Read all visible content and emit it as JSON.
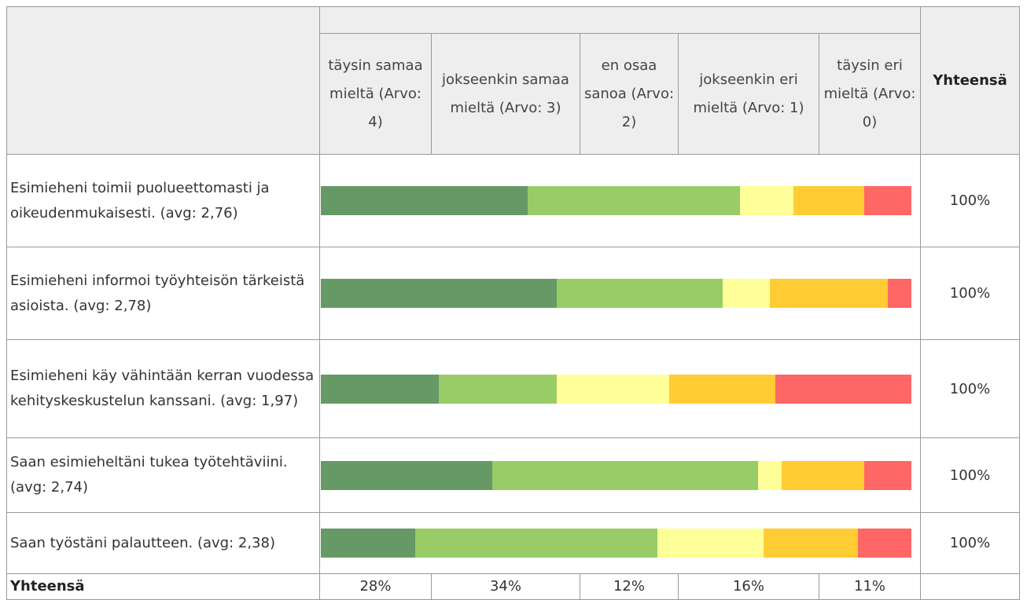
{
  "table": {
    "columns": [
      "täysin samaa mieltä (Arvo: 4)",
      "jokseenkin samaa mieltä (Arvo: 3)",
      "en osaa sanoa (Arvo: 2)",
      "jokseenkin eri mieltä (Arvo: 1)",
      "täysin eri mieltä (Arvo: 0)"
    ],
    "colors": [
      "#669966",
      "#99cc66",
      "#ffff99",
      "#ffcc33",
      "#ff6666"
    ],
    "total_header": "Yhteensä",
    "rows": [
      {
        "label": "Esimieheni toimii puolueettomasti ja oikeudenmukaisesti. (avg: 2,76)",
        "segments": [
          35,
          36,
          9,
          12,
          8
        ],
        "total": "100%"
      },
      {
        "label": "Esimieheni informoi työyhteisön tärkeistä asioista. (avg: 2,78)",
        "segments": [
          40,
          28,
          8,
          20,
          4
        ],
        "total": "100%"
      },
      {
        "label": "Esimieheni käy vähintään kerran vuodessa kehityskeskustelun kanssani. (avg: 1,97)",
        "segments": [
          20,
          20,
          19,
          18,
          23
        ],
        "total": "100%"
      },
      {
        "label": "Saan esimieheltäni tukea työtehtäviini. (avg: 2,74)",
        "segments": [
          29,
          45,
          4,
          14,
          8
        ],
        "total": "100%"
      },
      {
        "label": "Saan työstäni palautteen. (avg: 2,38)",
        "segments": [
          16,
          41,
          18,
          16,
          9
        ],
        "total": "100%"
      }
    ],
    "footer": {
      "label": "Yhteensä",
      "values": [
        "28%",
        "34%",
        "12%",
        "16%",
        "11%"
      ]
    }
  }
}
